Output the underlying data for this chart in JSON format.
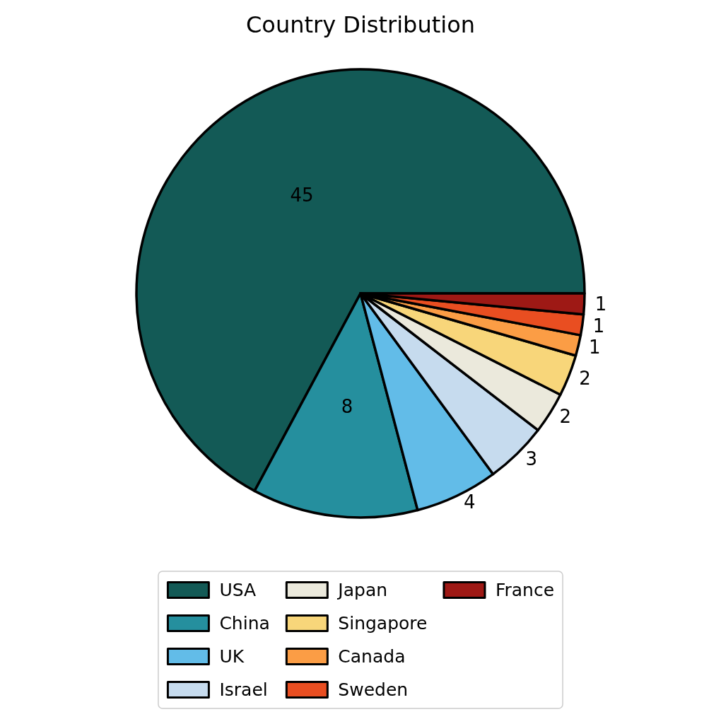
{
  "chart_data": {
    "type": "pie",
    "title": "Country Distribution",
    "categories": [
      "USA",
      "China",
      "UK",
      "Israel",
      "Japan",
      "Singapore",
      "Canada",
      "Sweden",
      "France"
    ],
    "values": [
      45,
      8,
      4,
      3,
      2,
      2,
      1,
      1,
      1
    ],
    "colors": [
      "#135a56",
      "#258f9e",
      "#62bce8",
      "#c6dbee",
      "#ebe9dc",
      "#f8d67a",
      "#fb9d45",
      "#e94e21",
      "#9e1915"
    ],
    "data_labels": true,
    "legend": "bottom"
  }
}
